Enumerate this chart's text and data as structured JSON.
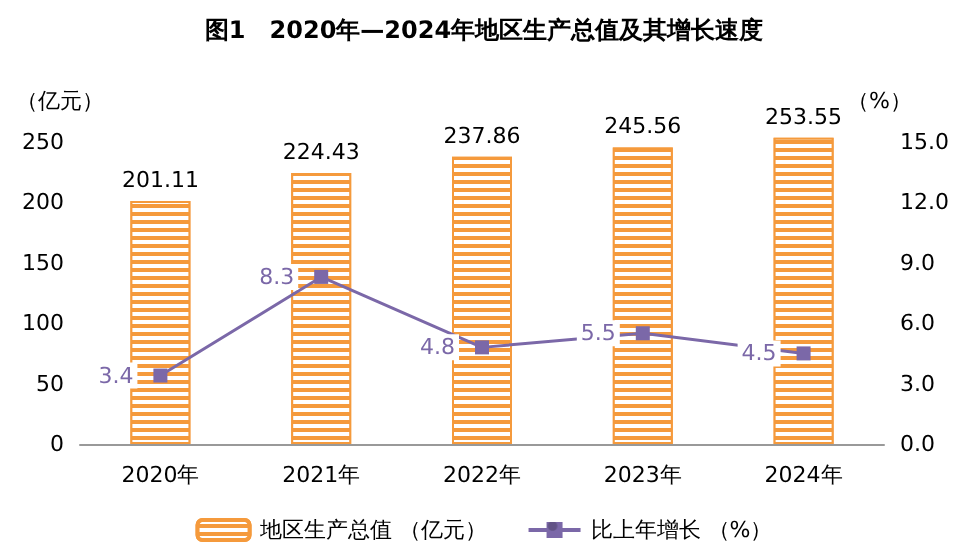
{
  "chart_data": {
    "type": "bar",
    "title": "图1　2020年—2024年地区生产总值及其增长速度",
    "ylabel": "（亿元）",
    "y2label": "（%）",
    "categories": [
      "2020年",
      "2021年",
      "2022年",
      "2023年",
      "2024年"
    ],
    "series": [
      {
        "name": "地区生产总值 （亿元）",
        "color": "#f59a3c",
        "values": [
          201.11,
          224.43,
          237.86,
          245.56,
          253.55
        ]
      },
      {
        "name": "比上年增长 （%）",
        "type": "line",
        "axis": "y2",
        "color": "#7b68a8",
        "values": [
          3.4,
          8.3,
          4.8,
          5.5,
          4.5
        ]
      }
    ],
    "ylim": [
      0,
      255
    ],
    "yticks": [
      0,
      50,
      100,
      150,
      200,
      250
    ],
    "y2lim": [
      0,
      15.3
    ],
    "y2ticks": [
      {
        "value": 0,
        "label": "0.0"
      },
      {
        "value": 3,
        "label": "3.0"
      },
      {
        "value": 6,
        "label": "6.0"
      },
      {
        "value": 9,
        "label": "9.0"
      },
      {
        "value": 12,
        "label": "12.0"
      },
      {
        "value": 15,
        "label": "15.0"
      }
    ],
    "data_labels": true,
    "legend": "bottom",
    "marker": "square",
    "grid": false
  }
}
